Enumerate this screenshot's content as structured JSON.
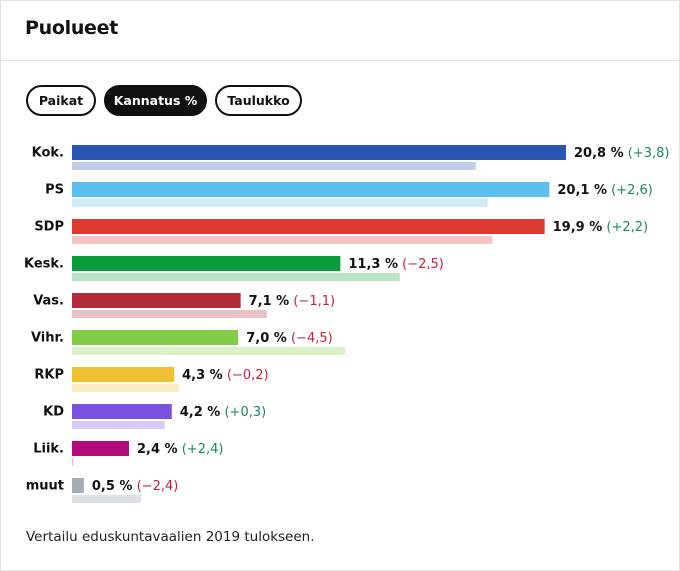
{
  "header": {
    "title": "Puolueet"
  },
  "tabs": [
    {
      "label": "Paikat",
      "active": false
    },
    {
      "label": "Kannatus %",
      "active": true
    },
    {
      "label": "Taulukko",
      "active": false
    }
  ],
  "chart_data": {
    "type": "bar",
    "orientation": "horizontal",
    "categories": [
      "Kok.",
      "PS",
      "SDP",
      "Kesk.",
      "Vas.",
      "Vihr.",
      "RKP",
      "KD",
      "Liik.",
      "muut"
    ],
    "series": [
      {
        "values": [
          20.8,
          20.1,
          19.9,
          11.3,
          7.1,
          7.0,
          4.3,
          4.2,
          2.4,
          0.5
        ]
      },
      {
        "values": [
          17.0,
          17.5,
          17.7,
          13.8,
          8.2,
          11.5,
          4.5,
          3.9,
          0.0,
          2.9
        ]
      }
    ],
    "value_labels": [
      "20,8 %",
      "20,1 %",
      "19,9 %",
      "11,3 %",
      "7,1 %",
      "7,0 %",
      "4,3 %",
      "4,2 %",
      "2,4 %",
      "0,5 %"
    ],
    "change_labels": [
      "(+3,8)",
      "(+2,6)",
      "(+2,2)",
      "(−2,5)",
      "(−1,1)",
      "(−4,5)",
      "(−0,2)",
      "(+0,3)",
      "(+2,4)",
      "(−2,4)"
    ],
    "changes": [
      3.8,
      2.6,
      2.2,
      -2.5,
      -1.1,
      -4.5,
      -0.2,
      0.3,
      2.4,
      -2.4
    ],
    "colors": [
      "#2756b5",
      "#5bc0ee",
      "#dd3a31",
      "#0a9b3b",
      "#b32a3b",
      "#82cc47",
      "#f0c034",
      "#7a50df",
      "#b50a7c",
      "#a2abb6"
    ],
    "prev_colors": [
      "#c0cce8",
      "#cdeaf8",
      "#f4c5c3",
      "#b8e3c5",
      "#e9c0c6",
      "#daf1c7",
      "#fbecc2",
      "#d7cbf6",
      "#e9b6d8",
      "#dde1e6"
    ],
    "positive_color": "#1a8a5b",
    "negative_color": "#c8213e",
    "xlim": [
      0,
      20.8
    ]
  },
  "footer": {
    "note": "Vertailu eduskuntavaalien 2019 tulokseen."
  }
}
